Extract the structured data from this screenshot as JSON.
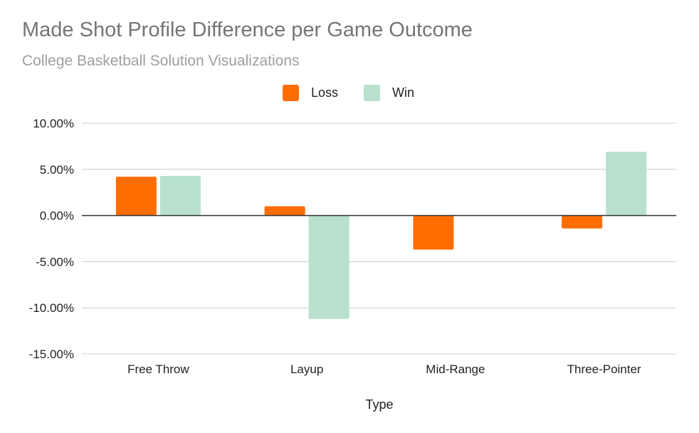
{
  "chart_data": {
    "type": "bar",
    "title": "Made Shot Profile Difference per Game Outcome",
    "subtitle": "College Basketball Solution Visualizations",
    "xlabel": "Type",
    "ylabel": "",
    "categories": [
      "Free Throw",
      "Layup",
      "Mid-Range",
      "Three-Pointer"
    ],
    "series": [
      {
        "name": "Loss",
        "color": "#ff6d01",
        "values": [
          4.2,
          1.0,
          -3.7,
          -1.4
        ]
      },
      {
        "name": "Win",
        "color": "#b7e1cd",
        "values": [
          4.3,
          -11.2,
          0.0,
          6.9
        ]
      }
    ],
    "ylim": [
      -15,
      10
    ],
    "yticks": [
      10,
      5,
      0,
      -5,
      -10,
      -15
    ],
    "ytick_labels": [
      "10.00%",
      "5.00%",
      "0.00%",
      "-5.00%",
      "-10.00%",
      "-15.00%"
    ],
    "legend_position": "top",
    "grid": true
  }
}
